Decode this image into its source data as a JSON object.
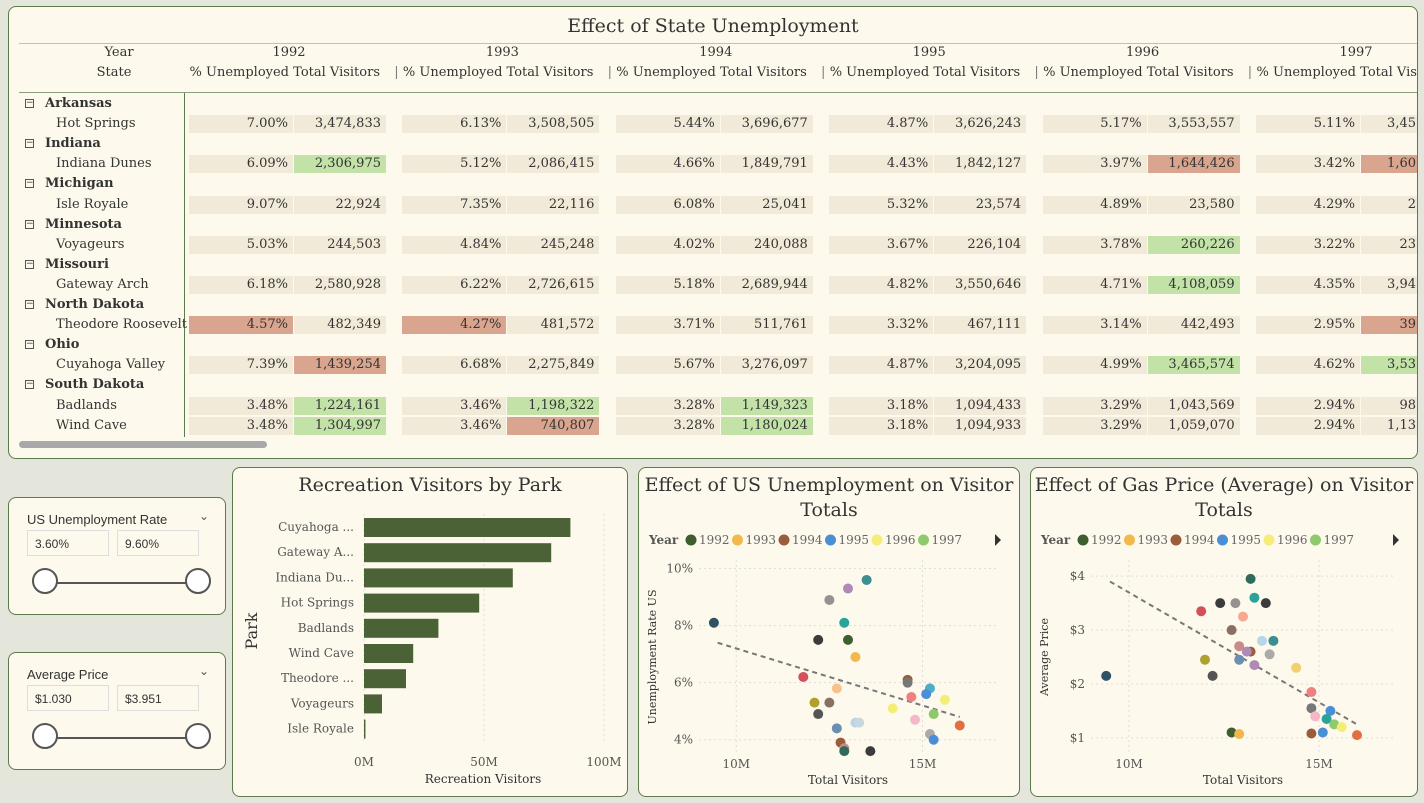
{
  "matrix": {
    "title": "Effect of State Unemployment",
    "year_label": "Year",
    "state_label": "State",
    "col_unemp": "% Unemployed",
    "col_visitors": "Total Visitors",
    "years": [
      "1992",
      "1993",
      "1994",
      "1995",
      "1996",
      "1997"
    ],
    "rows": [
      {
        "state": "Arkansas",
        "parks": [
          {
            "park": "Hot Springs",
            "cells": [
              [
                "7.00%",
                "3,474,833"
              ],
              [
                "6.13%",
                "3,508,505"
              ],
              [
                "5.44%",
                "3,696,677"
              ],
              [
                "4.87%",
                "3,626,243"
              ],
              [
                "5.17%",
                "3,553,557"
              ],
              [
                "5.11%",
                "3,45"
              ]
            ]
          }
        ]
      },
      {
        "state": "Indiana",
        "parks": [
          {
            "park": "Indiana Dunes",
            "cells": [
              [
                "6.09%",
                "2,306,975"
              ],
              [
                "5.12%",
                "2,086,415"
              ],
              [
                "4.66%",
                "1,849,791"
              ],
              [
                "4.43%",
                "1,842,127"
              ],
              [
                "3.97%",
                "1,644,426"
              ],
              [
                "3.42%",
                "1,60"
              ]
            ]
          }
        ]
      },
      {
        "state": "Michigan",
        "parks": [
          {
            "park": "Isle Royale",
            "cells": [
              [
                "9.07%",
                "22,924"
              ],
              [
                "7.35%",
                "22,116"
              ],
              [
                "6.08%",
                "25,041"
              ],
              [
                "5.32%",
                "23,574"
              ],
              [
                "4.89%",
                "23,580"
              ],
              [
                "4.29%",
                "2"
              ]
            ]
          }
        ]
      },
      {
        "state": "Minnesota",
        "parks": [
          {
            "park": "Voyageurs",
            "cells": [
              [
                "5.03%",
                "244,503"
              ],
              [
                "4.84%",
                "245,248"
              ],
              [
                "4.02%",
                "240,088"
              ],
              [
                "3.67%",
                "226,104"
              ],
              [
                "3.78%",
                "260,226"
              ],
              [
                "3.22%",
                "23"
              ]
            ]
          }
        ]
      },
      {
        "state": "Missouri",
        "parks": [
          {
            "park": "Gateway Arch",
            "cells": [
              [
                "6.18%",
                "2,580,928"
              ],
              [
                "6.22%",
                "2,726,615"
              ],
              [
                "5.18%",
                "2,689,944"
              ],
              [
                "4.82%",
                "3,550,646"
              ],
              [
                "4.71%",
                "4,108,059"
              ],
              [
                "4.35%",
                "3,94"
              ]
            ]
          }
        ]
      },
      {
        "state": "North Dakota",
        "parks": [
          {
            "park": "Theodore Roosevelt",
            "cells": [
              [
                "4.57%",
                "482,349"
              ],
              [
                "4.27%",
                "481,572"
              ],
              [
                "3.71%",
                "511,761"
              ],
              [
                "3.32%",
                "467,111"
              ],
              [
                "3.14%",
                "442,493"
              ],
              [
                "2.95%",
                "39"
              ]
            ]
          }
        ]
      },
      {
        "state": "Ohio",
        "parks": [
          {
            "park": "Cuyahoga Valley",
            "cells": [
              [
                "7.39%",
                "1,439,254"
              ],
              [
                "6.68%",
                "2,275,849"
              ],
              [
                "5.67%",
                "3,276,097"
              ],
              [
                "4.87%",
                "3,204,095"
              ],
              [
                "4.99%",
                "3,465,574"
              ],
              [
                "4.62%",
                "3,53"
              ]
            ]
          }
        ]
      },
      {
        "state": "South Dakota",
        "parks": [
          {
            "park": "Badlands",
            "cells": [
              [
                "3.48%",
                "1,224,161"
              ],
              [
                "3.46%",
                "1,198,322"
              ],
              [
                "3.28%",
                "1,149,323"
              ],
              [
                "3.18%",
                "1,094,433"
              ],
              [
                "3.29%",
                "1,043,569"
              ],
              [
                "2.94%",
                "98"
              ]
            ]
          },
          {
            "park": "Wind Cave",
            "cells": [
              [
                "3.48%",
                "1,304,997"
              ],
              [
                "3.46%",
                "740,807"
              ],
              [
                "3.28%",
                "1,180,024"
              ],
              [
                "3.18%",
                "1,094,933"
              ],
              [
                "3.29%",
                "1,059,070"
              ],
              [
                "2.94%",
                "1,13"
              ]
            ]
          }
        ]
      }
    ],
    "highlights": [
      {
        "park": "Indiana Dunes",
        "year": "1992",
        "col": "visitors",
        "tone": "good"
      },
      {
        "park": "Indiana Dunes",
        "year": "1996",
        "col": "visitors",
        "tone": "bad"
      },
      {
        "park": "Indiana Dunes",
        "year": "1997",
        "col": "visitors",
        "tone": "bad"
      },
      {
        "park": "Voyageurs",
        "year": "1996",
        "col": "visitors",
        "tone": "good"
      },
      {
        "park": "Gateway Arch",
        "year": "1996",
        "col": "visitors",
        "tone": "good"
      },
      {
        "park": "Theodore Roosevelt",
        "year": "1992",
        "col": "unemp",
        "tone": "bad"
      },
      {
        "park": "Theodore Roosevelt",
        "year": "1993",
        "col": "unemp",
        "tone": "bad"
      },
      {
        "park": "Theodore Roosevelt",
        "year": "1997",
        "col": "visitors",
        "tone": "bad"
      },
      {
        "park": "Cuyahoga Valley",
        "year": "1992",
        "col": "visitors",
        "tone": "bad"
      },
      {
        "park": "Cuyahoga Valley",
        "year": "1996",
        "col": "visitors",
        "tone": "good"
      },
      {
        "park": "Cuyahoga Valley",
        "year": "1997",
        "col": "visitors",
        "tone": "good"
      },
      {
        "park": "Badlands",
        "year": "1992",
        "col": "visitors",
        "tone": "good"
      },
      {
        "park": "Badlands",
        "year": "1993",
        "col": "visitors",
        "tone": "good"
      },
      {
        "park": "Badlands",
        "year": "1994",
        "col": "visitors",
        "tone": "good"
      },
      {
        "park": "Wind Cave",
        "year": "1992",
        "col": "visitors",
        "tone": "good"
      },
      {
        "park": "Wind Cave",
        "year": "1993",
        "col": "visitors",
        "tone": "bad"
      },
      {
        "park": "Wind Cave",
        "year": "1994",
        "col": "visitors",
        "tone": "good"
      }
    ]
  },
  "slicers": {
    "unemployment": {
      "label": "US Unemployment Rate",
      "min": "3.60%",
      "max": "9.60%"
    },
    "price": {
      "label": "Average Price",
      "min": "$1.030",
      "max": "$3.951"
    }
  },
  "colors": {
    "panel_bg": "#fdf9ec",
    "border": "#5c7a4a",
    "bar": "#4a6235",
    "cell_bg": "#f2ead8",
    "good": "#c2e2a8",
    "bad": "#daa58e",
    "year_colors": {
      "1992": "#3e5e2f",
      "1993": "#f2b84b",
      "1994": "#9a5c3c",
      "1995": "#4a8fd6",
      "1996": "#f4ee78",
      "1997": "#8fc96b"
    }
  },
  "chart_data": [
    {
      "type": "bar",
      "title": "Recreation Visitors by Park",
      "ylabel": "Park",
      "xlabel": "Recreation Visitors",
      "categories": [
        "Cuyahoga ...",
        "Gateway A...",
        "Indiana Du...",
        "Hot Springs",
        "Badlands",
        "Wind Cave",
        "Theodore ...",
        "Voyageurs",
        "Isle Royale"
      ],
      "values": [
        86000000,
        78000000,
        62000000,
        48000000,
        31000000,
        20500000,
        17500000,
        7500000,
        600000
      ],
      "xlim": [
        0,
        100000000
      ],
      "xticks": [
        "0M",
        "50M",
        "100M"
      ],
      "legend": "none"
    },
    {
      "type": "scatter",
      "title": "Effect of US Unemployment on Visitor Totals",
      "legend_title": "Year",
      "legend": "top",
      "series_names": [
        "1992",
        "1993",
        "1994",
        "1995",
        "1996",
        "1997"
      ],
      "xlabel": "Total Visitors",
      "ylabel": "Unemployment Rate US",
      "xticks": [
        "10M",
        "15M"
      ],
      "yticks": [
        "4%",
        "6%",
        "8%",
        "10%"
      ],
      "xlim": [
        9000000,
        17000000
      ],
      "ylim": [
        3.5,
        10.3
      ],
      "trend": [
        [
          9500000,
          7.4
        ],
        [
          16000000,
          4.8
        ]
      ],
      "points": [
        {
          "x": 9400000,
          "y": 8.1,
          "c": "#2f5267"
        },
        {
          "x": 12200000,
          "y": 7.5,
          "c": "#3b3b3b"
        },
        {
          "x": 13000000,
          "y": 7.5,
          "c": "#3e5e2f"
        },
        {
          "x": 12500000,
          "y": 8.9,
          "c": "#9a9090"
        },
        {
          "x": 13000000,
          "y": 9.3,
          "c": "#b08ab6"
        },
        {
          "x": 13500000,
          "y": 9.6,
          "c": "#3a8f8f"
        },
        {
          "x": 12900000,
          "y": 8.1,
          "c": "#2aa39a"
        },
        {
          "x": 13200000,
          "y": 6.9,
          "c": "#f2b84b"
        },
        {
          "x": 11800000,
          "y": 6.2,
          "c": "#d4505a"
        },
        {
          "x": 12700000,
          "y": 5.8,
          "c": "#f7c28c"
        },
        {
          "x": 12100000,
          "y": 5.3,
          "c": "#b0a030"
        },
        {
          "x": 12500000,
          "y": 5.3,
          "c": "#8a7060"
        },
        {
          "x": 12200000,
          "y": 4.9,
          "c": "#555555"
        },
        {
          "x": 12700000,
          "y": 4.4,
          "c": "#6a8fb0"
        },
        {
          "x": 13200000,
          "y": 4.6,
          "c": "#b7d7e8"
        },
        {
          "x": 13300000,
          "y": 4.6,
          "c": "#c9d7e0"
        },
        {
          "x": 12800000,
          "y": 3.9,
          "c": "#9a5c3c"
        },
        {
          "x": 12900000,
          "y": 3.7,
          "c": "#c98a8a"
        },
        {
          "x": 12900000,
          "y": 3.6,
          "c": "#2f6a5a"
        },
        {
          "x": 13600000,
          "y": 3.6,
          "c": "#3b3b3b"
        },
        {
          "x": 14200000,
          "y": 5.1,
          "c": "#f4ee78"
        },
        {
          "x": 14600000,
          "y": 6.1,
          "c": "#9a5c3c"
        },
        {
          "x": 14600000,
          "y": 6.0,
          "c": "#777777"
        },
        {
          "x": 14700000,
          "y": 5.5,
          "c": "#f08080"
        },
        {
          "x": 15200000,
          "y": 5.8,
          "c": "#4ab0c8"
        },
        {
          "x": 15100000,
          "y": 5.6,
          "c": "#4a8fd6"
        },
        {
          "x": 15600000,
          "y": 5.4,
          "c": "#f4ee78"
        },
        {
          "x": 15300000,
          "y": 4.9,
          "c": "#8fc96b"
        },
        {
          "x": 14800000,
          "y": 4.7,
          "c": "#f4b8c8"
        },
        {
          "x": 15200000,
          "y": 4.2,
          "c": "#aaaaaa"
        },
        {
          "x": 15300000,
          "y": 4.0,
          "c": "#4a8fd6"
        },
        {
          "x": 16000000,
          "y": 4.5,
          "c": "#e07040"
        }
      ]
    },
    {
      "type": "scatter",
      "title": "Effect of Gas Price (Average) on Visitor Totals",
      "legend_title": "Year",
      "legend": "top",
      "series_names": [
        "1992",
        "1993",
        "1994",
        "1995",
        "1996",
        "1997"
      ],
      "xlabel": "Total Visitors",
      "ylabel": "Average Price",
      "xticks": [
        "10M",
        "15M"
      ],
      "yticks": [
        "$1",
        "$2",
        "$3",
        "$4"
      ],
      "xlim": [
        9000000,
        17000000
      ],
      "ylim": [
        0.7,
        4.3
      ],
      "trend": [
        [
          9500000,
          3.9
        ],
        [
          16000000,
          1.25
        ]
      ],
      "points": [
        {
          "x": 9400000,
          "y": 2.15,
          "c": "#2f5267"
        },
        {
          "x": 11900000,
          "y": 3.35,
          "c": "#d4505a"
        },
        {
          "x": 12400000,
          "y": 3.5,
          "c": "#3b3b3b"
        },
        {
          "x": 12800000,
          "y": 3.5,
          "c": "#9a9090"
        },
        {
          "x": 13000000,
          "y": 3.25,
          "c": "#f7a890"
        },
        {
          "x": 13200000,
          "y": 3.95,
          "c": "#2f6a5a"
        },
        {
          "x": 13300000,
          "y": 3.6,
          "c": "#2aa39a"
        },
        {
          "x": 13600000,
          "y": 3.5,
          "c": "#3b3b3b"
        },
        {
          "x": 12700000,
          "y": 3.0,
          "c": "#8a7060"
        },
        {
          "x": 12900000,
          "y": 2.7,
          "c": "#c98a8a"
        },
        {
          "x": 13200000,
          "y": 2.6,
          "c": "#9a5c3c"
        },
        {
          "x": 13100000,
          "y": 2.6,
          "c": "#b08ab6"
        },
        {
          "x": 13500000,
          "y": 2.8,
          "c": "#b7d7e8"
        },
        {
          "x": 13800000,
          "y": 2.8,
          "c": "#3a8f8f"
        },
        {
          "x": 13700000,
          "y": 2.55,
          "c": "#aaaaaa"
        },
        {
          "x": 12000000,
          "y": 2.45,
          "c": "#b0a030"
        },
        {
          "x": 12900000,
          "y": 2.45,
          "c": "#6a8fb0"
        },
        {
          "x": 13300000,
          "y": 2.35,
          "c": "#b08ab6"
        },
        {
          "x": 12200000,
          "y": 2.15,
          "c": "#555555"
        },
        {
          "x": 14400000,
          "y": 2.3,
          "c": "#f2d070"
        },
        {
          "x": 14800000,
          "y": 1.85,
          "c": "#f08080"
        },
        {
          "x": 14800000,
          "y": 1.55,
          "c": "#777777"
        },
        {
          "x": 14900000,
          "y": 1.4,
          "c": "#f4b8c8"
        },
        {
          "x": 15300000,
          "y": 1.5,
          "c": "#4a8fd6"
        },
        {
          "x": 15200000,
          "y": 1.35,
          "c": "#2aa39a"
        },
        {
          "x": 15400000,
          "y": 1.25,
          "c": "#8fc96b"
        },
        {
          "x": 15600000,
          "y": 1.2,
          "c": "#f4ee78"
        },
        {
          "x": 15100000,
          "y": 1.1,
          "c": "#4a8fd6"
        },
        {
          "x": 14800000,
          "y": 1.08,
          "c": "#9a5c3c"
        },
        {
          "x": 12700000,
          "y": 1.1,
          "c": "#3e5e2f"
        },
        {
          "x": 12900000,
          "y": 1.07,
          "c": "#f2b84b"
        },
        {
          "x": 16000000,
          "y": 1.05,
          "c": "#e07040"
        }
      ]
    }
  ]
}
